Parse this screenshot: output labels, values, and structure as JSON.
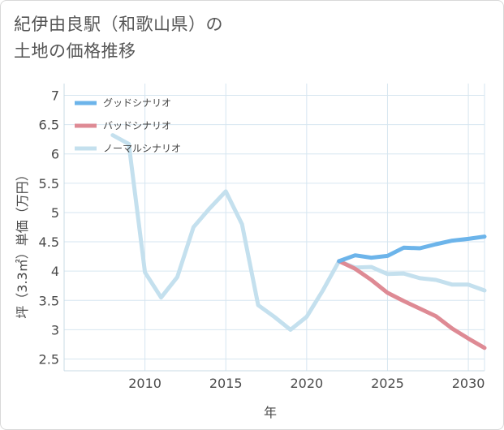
{
  "title_line1": "紀伊由良駅（和歌山県）の",
  "title_line2": "土地の価格推移",
  "chart_data": {
    "type": "line",
    "xlabel": "年",
    "ylabel": "坪（3.3㎡）単価（万円）",
    "xlim": [
      2005,
      2031
    ],
    "ylim": [
      2.3,
      7.2
    ],
    "xticks": [
      "2010",
      "2015",
      "2020",
      "2025",
      "2030"
    ],
    "yticks": [
      "2.5",
      "3",
      "3.5",
      "4",
      "4.5",
      "5",
      "5.5",
      "6",
      "6.5",
      "7"
    ],
    "legend_position": "top-left",
    "grid": true,
    "series": [
      {
        "name": "グッドシナリオ",
        "color": "#6cb4ea",
        "x": [
          2022,
          2023,
          2024,
          2025,
          2026,
          2027,
          2028,
          2029,
          2030,
          2031
        ],
        "values": [
          4.17,
          4.27,
          4.23,
          4.26,
          4.4,
          4.39,
          4.46,
          4.52,
          4.55,
          4.59
        ]
      },
      {
        "name": "バッドシナリオ",
        "color": "#de8a94",
        "x": [
          2022,
          2023,
          2024,
          2025,
          2026,
          2027,
          2028,
          2029,
          2030,
          2031
        ],
        "values": [
          4.17,
          4.04,
          3.85,
          3.63,
          3.49,
          3.36,
          3.23,
          3.02,
          2.85,
          2.69
        ]
      },
      {
        "name": "ノーマルシナリオ",
        "color": "#c4e0ee",
        "x": [
          2008,
          2009,
          2010,
          2011,
          2012,
          2013,
          2014,
          2015,
          2016,
          2017,
          2018,
          2019,
          2020,
          2021,
          2022,
          2023,
          2024,
          2025,
          2026,
          2027,
          2028,
          2029,
          2030,
          2031
        ],
        "values": [
          6.32,
          6.17,
          3.98,
          3.55,
          3.9,
          4.75,
          5.07,
          5.36,
          4.8,
          3.42,
          3.22,
          3.0,
          3.22,
          3.67,
          4.17,
          4.06,
          4.07,
          3.95,
          3.96,
          3.88,
          3.85,
          3.77,
          3.77,
          3.67
        ]
      }
    ]
  }
}
